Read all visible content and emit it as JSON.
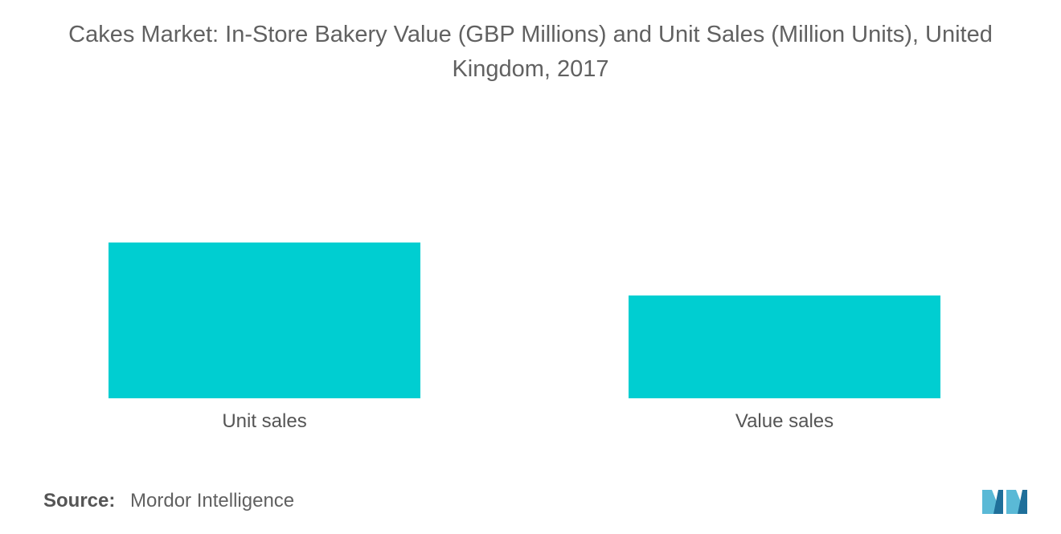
{
  "title": "Cakes Market: In-Store Bakery Value (GBP Millions) and Unit Sales (Million Units), United Kingdom, 2017",
  "source": {
    "label": "Source:",
    "text": "Mordor Intelligence"
  },
  "logo": {
    "icon": "mordor-intelligence-logo"
  },
  "colors": {
    "bar": "#00CED1",
    "text": "#616161",
    "logo_light": "#5ab9d6",
    "logo_dark": "#1f6f9a"
  },
  "chart_data": {
    "type": "bar",
    "title": "Cakes Market: In-Store Bakery Value (GBP Millions) and Unit Sales (Million Units), United Kingdom, 2017",
    "categories": [
      "Unit sales",
      "Value sales"
    ],
    "values": [
      100,
      66
    ],
    "xlabel": "",
    "ylabel": "",
    "grid": false,
    "legend": "none"
  }
}
